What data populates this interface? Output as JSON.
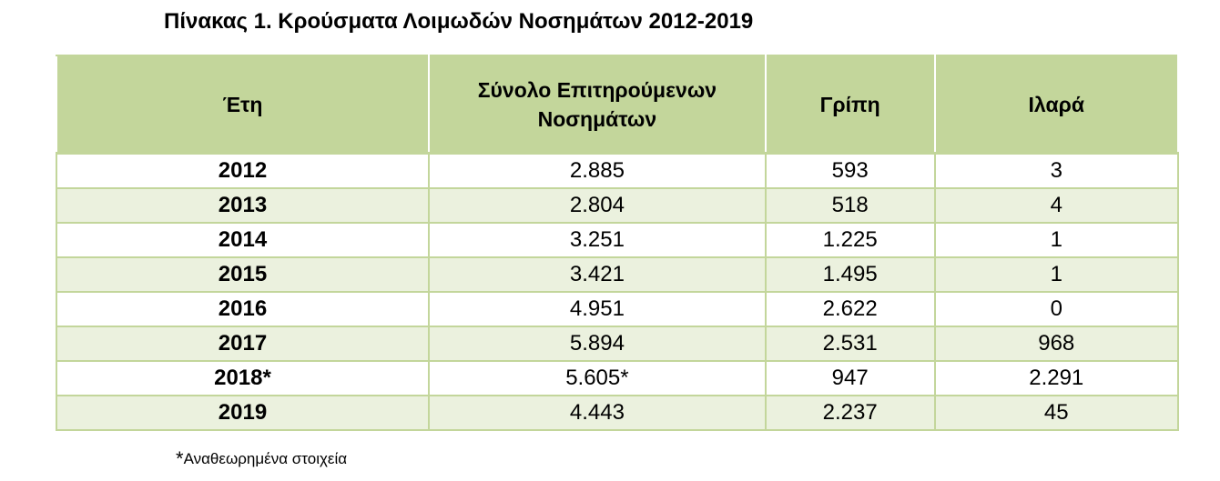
{
  "title": "Πίνακας 1. Κρούσματα Λοιμωδών Νοσημάτων 2012-2019",
  "table": {
    "headers": [
      "Έτη",
      "Σύνολο Επιτηρούμενων Νοσημάτων",
      "Γρίπη",
      "Ιλαρά"
    ],
    "rows": [
      [
        "2012",
        "2.885",
        "593",
        "3"
      ],
      [
        "2013",
        "2.804",
        "518",
        "4"
      ],
      [
        "2014",
        "3.251",
        "1.225",
        "1"
      ],
      [
        "2015",
        "3.421",
        "1.495",
        "1"
      ],
      [
        "2016",
        "4.951",
        "2.622",
        "0"
      ],
      [
        "2017",
        "5.894",
        "2.531",
        "968"
      ],
      [
        "2018*",
        "5.605*",
        "947",
        "2.291"
      ],
      [
        "2019",
        "4.443",
        "2.237",
        "45"
      ]
    ]
  },
  "footnote": {
    "star": "*",
    "text": "Αναθεωρημένα στοιχεία"
  },
  "colors": {
    "header_bg": "#c3d69b",
    "alt_row_bg": "#ebf1de",
    "border": "#c3d69b"
  }
}
